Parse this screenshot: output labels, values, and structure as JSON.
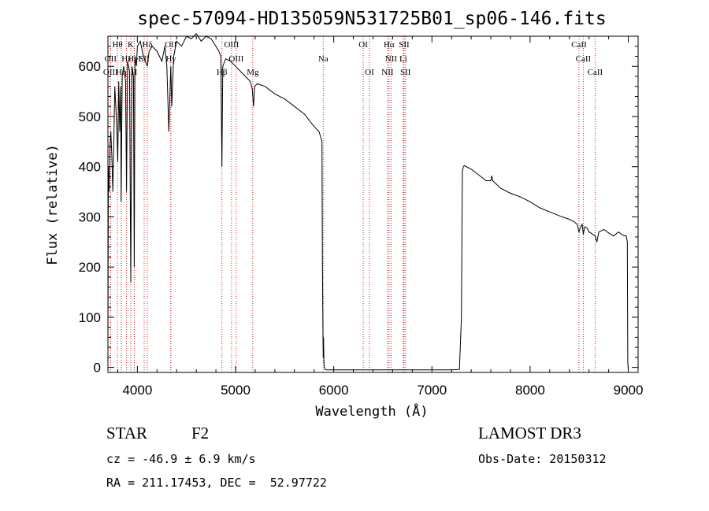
{
  "chart_data": {
    "type": "line",
    "title": "spec-57094-HD135059N531725B01_sp06-146.fits",
    "xlabel": "Wavelength (Å)",
    "ylabel": "Flux (relative)",
    "xlim": [
      3700,
      9100
    ],
    "ylim": [
      -10,
      660
    ],
    "xticks": [
      4000,
      5000,
      6000,
      7000,
      8000,
      9000
    ],
    "yticks": [
      0,
      100,
      200,
      300,
      400,
      500,
      600
    ],
    "series": [
      {
        "name": "flux",
        "x": [
          3700,
          3705,
          3712,
          3720,
          3730,
          3740,
          3750,
          3760,
          3770,
          3780,
          3790,
          3800,
          3810,
          3820,
          3830,
          3835,
          3845,
          3860,
          3880,
          3889,
          3900,
          3920,
          3933,
          3945,
          3960,
          3968,
          3975,
          3990,
          4000,
          4030,
          4060,
          4101,
          4120,
          4150,
          4200,
          4250,
          4280,
          4300,
          4320,
          4340,
          4350,
          4370,
          4400,
          4450,
          4500,
          4550,
          4600,
          4650,
          4700,
          4750,
          4800,
          4830,
          4850,
          4861,
          4870,
          4900,
          4950,
          5000,
          5050,
          5100,
          5150,
          5170,
          5183,
          5195,
          5220,
          5300,
          5400,
          5500,
          5600,
          5700,
          5800,
          5850,
          5880,
          5885,
          5890,
          5893,
          5896,
          5900,
          5905,
          5910,
          5920,
          6000,
          6200,
          6400,
          6600,
          6800,
          7000,
          7200,
          7280,
          7300,
          7310,
          7320,
          7330,
          7400,
          7500,
          7550,
          7600,
          7610,
          7620,
          7700,
          7800,
          7900,
          8000,
          8100,
          8200,
          8300,
          8400,
          8450,
          8480,
          8498,
          8510,
          8530,
          8542,
          8555,
          8580,
          8600,
          8640,
          8662,
          8680,
          8700,
          8750,
          8800,
          8850,
          8900,
          8950,
          8980,
          8990,
          8995,
          9000
        ],
        "values": [
          50,
          400,
          350,
          440,
          470,
          420,
          350,
          450,
          560,
          520,
          480,
          410,
          570,
          470,
          560,
          330,
          580,
          600,
          570,
          350,
          610,
          590,
          170,
          600,
          580,
          200,
          620,
          600,
          640,
          650,
          620,
          600,
          630,
          640,
          630,
          610,
          640,
          600,
          470,
          600,
          520,
          620,
          650,
          640,
          660,
          655,
          665,
          650,
          660,
          655,
          640,
          630,
          620,
          400,
          600,
          615,
          610,
          600,
          590,
          580,
          570,
          555,
          520,
          560,
          565,
          560,
          545,
          535,
          520,
          505,
          480,
          470,
          450,
          200,
          80,
          20,
          60,
          10,
          0,
          -3,
          -5,
          -5,
          -5,
          -5,
          -5,
          -5,
          -5,
          -5,
          -4,
          100,
          390,
          400,
          402,
          395,
          380,
          372,
          372,
          382,
          372,
          357,
          347,
          340,
          330,
          318,
          310,
          302,
          295,
          290,
          285,
          270,
          278,
          285,
          265,
          280,
          278,
          270,
          265,
          262,
          250,
          270,
          275,
          268,
          262,
          270,
          263,
          262,
          250,
          10,
          -5
        ]
      }
    ],
    "emission_lines": [
      {
        "label": "Hθ",
        "wl": 3797,
        "row": 0
      },
      {
        "label": "K",
        "wl": 3933,
        "row": 0
      },
      {
        "label": "Hδ",
        "wl": 4101,
        "row": 0
      },
      {
        "label": "OII",
        "wl": 4340,
        "row": 0
      },
      {
        "label": "OIII",
        "wl": 4959,
        "row": 0
      },
      {
        "label": "OI",
        "wl": 6300,
        "row": 0
      },
      {
        "label": "Hα",
        "wl": 6563,
        "row": 0
      },
      {
        "label": "SII",
        "wl": 6717,
        "row": 0
      },
      {
        "label": "CaII",
        "wl": 8498,
        "row": 0
      },
      {
        "label": "OII",
        "wl": 3727,
        "row": 1
      },
      {
        "label": "Hε",
        "wl": 3889,
        "row": 1
      },
      {
        "label": "HeI",
        "wl": 3970,
        "row": 1
      },
      {
        "label": "SII",
        "wl": 4069,
        "row": 1
      },
      {
        "label": "Hγ",
        "wl": 4340,
        "row": 1
      },
      {
        "label": "OIII",
        "wl": 5007,
        "row": 1
      },
      {
        "label": "Na",
        "wl": 5893,
        "row": 1
      },
      {
        "label": "NII",
        "wl": 6584,
        "row": 1
      },
      {
        "label": "Li",
        "wl": 6708,
        "row": 1
      },
      {
        "label": "CaII",
        "wl": 8542,
        "row": 1
      },
      {
        "label": "OIII",
        "wl": 3727,
        "row": 2
      },
      {
        "label": "Hη",
        "wl": 3835,
        "row": 2
      },
      {
        "label": "H",
        "wl": 3968,
        "row": 2
      },
      {
        "label": "Hβ",
        "wl": 4861,
        "row": 2
      },
      {
        "label": "Mg",
        "wl": 5175,
        "row": 2
      },
      {
        "label": "OI",
        "wl": 6364,
        "row": 2
      },
      {
        "label": "NII",
        "wl": 6548,
        "row": 2
      },
      {
        "label": "SII",
        "wl": 6731,
        "row": 2
      },
      {
        "label": "CaII",
        "wl": 8662,
        "row": 2
      }
    ]
  },
  "info": {
    "object_class": "STAR",
    "subclass": "F2",
    "survey": "LAMOST DR3",
    "cz": "cz = -46.9 ± 6.9 km/s",
    "obs_date": "Obs-Date: 20150312",
    "coords": "RA = 211.17453, DEC =  52.97722"
  },
  "colors": {
    "line": "#000000",
    "marker": "#cc2222"
  }
}
